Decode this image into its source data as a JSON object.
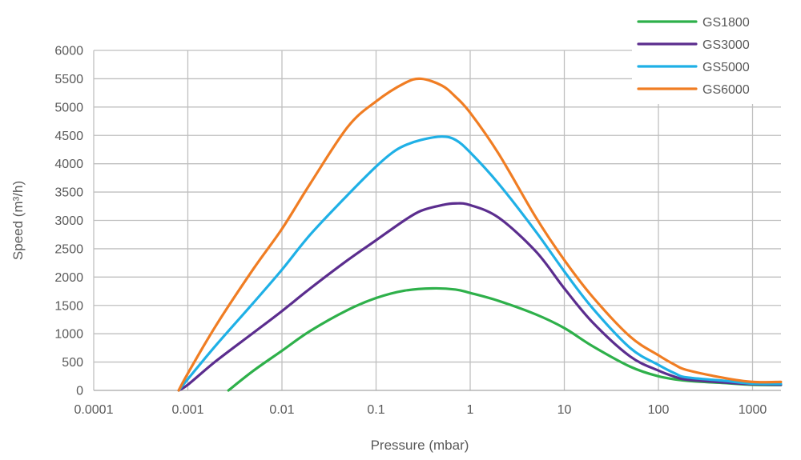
{
  "chart_data": {
    "type": "line",
    "xlabel": "Pressure (mbar)",
    "ylabel": "Speed (m³/h)",
    "x_scale": "log",
    "xlim": [
      0.0001,
      2000
    ],
    "ylim": [
      0,
      6000
    ],
    "x_ticks": [
      0.0001,
      0.001,
      0.01,
      0.1,
      1,
      10,
      100,
      1000
    ],
    "x_tick_labels": [
      "0.0001",
      "0.001",
      "0.01",
      "0.1",
      "1",
      "10",
      "100",
      "1000"
    ],
    "y_ticks": [
      0,
      500,
      1000,
      1500,
      2000,
      2500,
      3000,
      3500,
      4000,
      4500,
      5000,
      5500,
      6000
    ],
    "y_tick_labels": [
      "0",
      "500",
      "1000",
      "1500",
      "2000",
      "2500",
      "3000",
      "3500",
      "4000",
      "4500",
      "5000",
      "5500",
      "6000"
    ],
    "grid": true,
    "legend_position": "top-right",
    "series": [
      {
        "name": "GS1800",
        "color": "#2eb04a",
        "points": [
          [
            0.0027,
            0
          ],
          [
            0.005,
            350
          ],
          [
            0.01,
            700
          ],
          [
            0.02,
            1050
          ],
          [
            0.05,
            1420
          ],
          [
            0.1,
            1630
          ],
          [
            0.2,
            1760
          ],
          [
            0.4,
            1800
          ],
          [
            0.7,
            1780
          ],
          [
            1,
            1720
          ],
          [
            2,
            1580
          ],
          [
            5,
            1340
          ],
          [
            10,
            1100
          ],
          [
            20,
            780
          ],
          [
            50,
            420
          ],
          [
            100,
            250
          ],
          [
            200,
            170
          ],
          [
            500,
            130
          ],
          [
            1000,
            100
          ],
          [
            2000,
            95
          ]
        ]
      },
      {
        "name": "GS3000",
        "color": "#5b2d8e",
        "points": [
          [
            0.0008,
            0
          ],
          [
            0.001,
            100
          ],
          [
            0.002,
            520
          ],
          [
            0.005,
            1020
          ],
          [
            0.01,
            1400
          ],
          [
            0.02,
            1800
          ],
          [
            0.05,
            2300
          ],
          [
            0.1,
            2650
          ],
          [
            0.2,
            3000
          ],
          [
            0.3,
            3170
          ],
          [
            0.5,
            3270
          ],
          [
            0.7,
            3300
          ],
          [
            1,
            3270
          ],
          [
            2,
            3050
          ],
          [
            5,
            2450
          ],
          [
            10,
            1800
          ],
          [
            20,
            1200
          ],
          [
            50,
            600
          ],
          [
            100,
            350
          ],
          [
            150,
            240
          ],
          [
            200,
            190
          ],
          [
            500,
            140
          ],
          [
            1000,
            110
          ],
          [
            2000,
            100
          ]
        ]
      },
      {
        "name": "GS5000",
        "color": "#1fb0e6",
        "points": [
          [
            0.0008,
            0
          ],
          [
            0.001,
            200
          ],
          [
            0.002,
            800
          ],
          [
            0.005,
            1550
          ],
          [
            0.01,
            2130
          ],
          [
            0.02,
            2750
          ],
          [
            0.05,
            3450
          ],
          [
            0.1,
            3950
          ],
          [
            0.15,
            4200
          ],
          [
            0.2,
            4320
          ],
          [
            0.3,
            4420
          ],
          [
            0.5,
            4480
          ],
          [
            0.7,
            4420
          ],
          [
            1,
            4200
          ],
          [
            2,
            3650
          ],
          [
            5,
            2800
          ],
          [
            10,
            2100
          ],
          [
            20,
            1450
          ],
          [
            50,
            750
          ],
          [
            100,
            450
          ],
          [
            150,
            300
          ],
          [
            200,
            230
          ],
          [
            500,
            170
          ],
          [
            1000,
            120
          ],
          [
            2000,
            115
          ]
        ]
      },
      {
        "name": "GS6000",
        "color": "#f07d23",
        "points": [
          [
            0.0008,
            0
          ],
          [
            0.001,
            300
          ],
          [
            0.002,
            1150
          ],
          [
            0.005,
            2150
          ],
          [
            0.01,
            2850
          ],
          [
            0.02,
            3650
          ],
          [
            0.05,
            4650
          ],
          [
            0.1,
            5100
          ],
          [
            0.2,
            5420
          ],
          [
            0.3,
            5500
          ],
          [
            0.5,
            5380
          ],
          [
            0.7,
            5180
          ],
          [
            1,
            4900
          ],
          [
            2,
            4180
          ],
          [
            5,
            3050
          ],
          [
            10,
            2300
          ],
          [
            20,
            1650
          ],
          [
            50,
            950
          ],
          [
            100,
            620
          ],
          [
            150,
            450
          ],
          [
            200,
            360
          ],
          [
            500,
            220
          ],
          [
            1000,
            150
          ],
          [
            2000,
            150
          ]
        ]
      }
    ]
  }
}
